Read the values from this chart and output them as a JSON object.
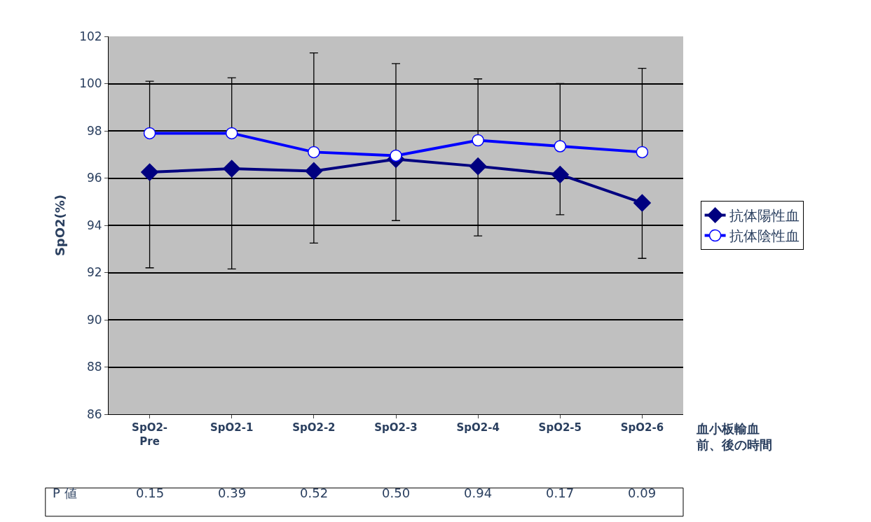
{
  "chart_data": {
    "type": "line",
    "ylabel": "SpO2(%)",
    "xlabel": "血小板輸血前、後の時間",
    "categories": [
      "SpO2-\nPre",
      "SpO2-1",
      "SpO2-2",
      "SpO2-3",
      "SpO2-4",
      "SpO2-5",
      "SpO2-6"
    ],
    "series": [
      {
        "name": "抗体陽性血",
        "color": "#000080",
        "marker": "diamond",
        "values": [
          96.25,
          96.4,
          96.3,
          96.8,
          96.5,
          96.15,
          94.95
        ],
        "errors": [
          [
            92.2,
            96.25
          ],
          [
            92.15,
            96.4
          ],
          [
            93.25,
            96.3
          ],
          [
            94.2,
            96.8
          ],
          [
            93.55,
            96.5
          ],
          [
            94.45,
            96.15
          ],
          [
            92.6,
            94.95
          ]
        ]
      },
      {
        "name": "抗体陰性血",
        "color": "#0000ff",
        "marker": "circle",
        "values": [
          97.9,
          97.9,
          97.1,
          96.95,
          97.6,
          97.35,
          97.1
        ],
        "errors": [
          [
            97.9,
            100.1
          ],
          [
            97.9,
            100.25
          ],
          [
            97.1,
            101.3
          ],
          [
            96.95,
            100.85
          ],
          [
            97.6,
            100.2
          ],
          [
            97.35,
            100.0
          ],
          [
            97.1,
            100.65
          ]
        ]
      }
    ],
    "ylim": [
      86,
      102
    ],
    "yticks": [
      86,
      88,
      90,
      92,
      94,
      96,
      98,
      100,
      102
    ],
    "grid": "y",
    "legend": "right",
    "annotations": [
      "P 値",
      "0.15",
      "0.39",
      "0.52",
      "0.50",
      "0.94",
      "0.17",
      "0.09"
    ]
  }
}
